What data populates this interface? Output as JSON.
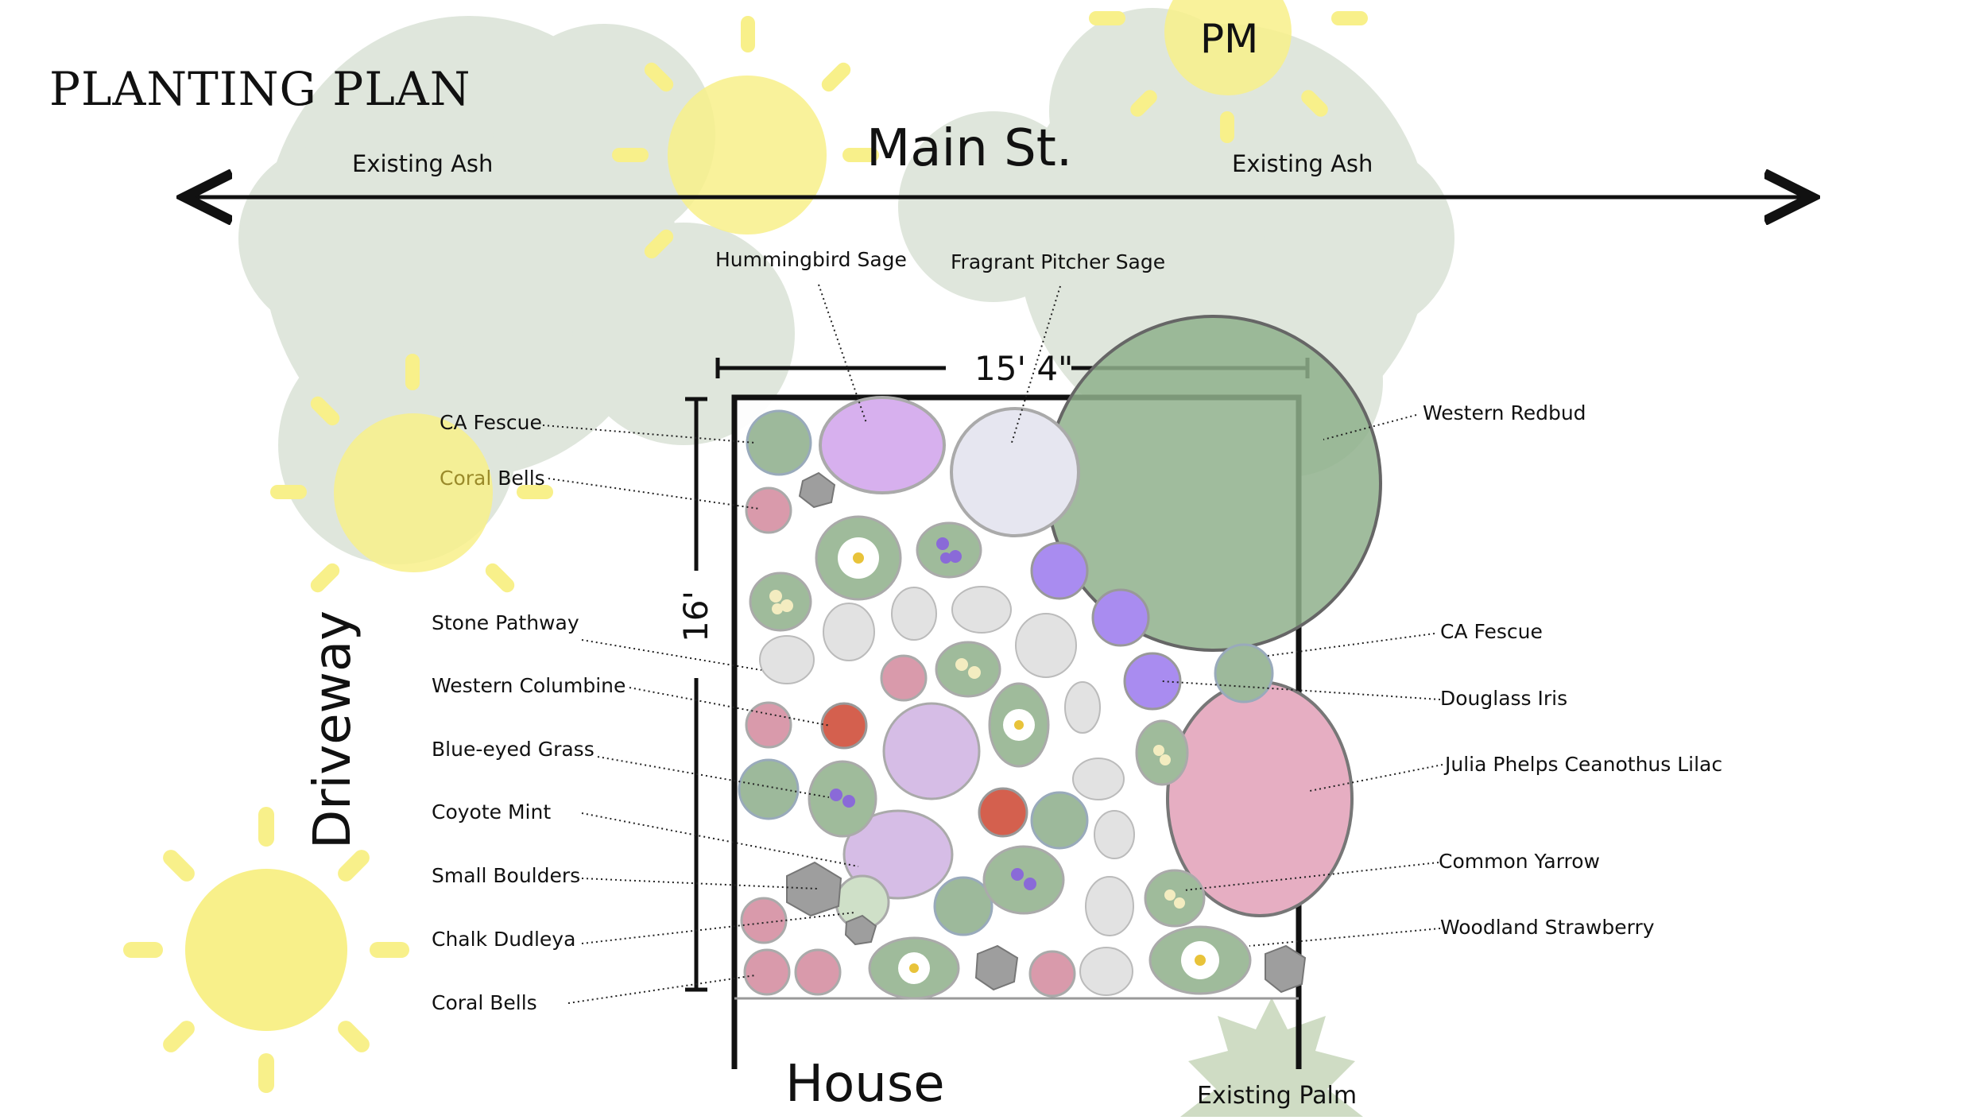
{
  "title": "PLANTING PLAN",
  "streets": {
    "main": "Main St.",
    "driveway": "Driveway",
    "house": "House"
  },
  "sun_label": "PM",
  "existing": {
    "ash_left": "Existing Ash",
    "ash_right": "Existing Ash",
    "palm": "Existing Palm"
  },
  "dimensions": {
    "width": "15' 4\"",
    "depth": "16'"
  },
  "labels": {
    "hummingbird_sage": "Hummingbird Sage",
    "fragrant_pitcher_sage": "Fragrant Pitcher Sage",
    "ca_fescue_left": "CA Fescue",
    "coral_bells_top_prefix": "Coral",
    "coral_bells_top_suffix": " Bells",
    "stone_pathway": "Stone Pathway",
    "western_columbine": "Western Columbine",
    "blue_eyed_grass": "Blue-eyed Grass",
    "coyote_mint": "Coyote Mint",
    "small_boulders": "Small Boulders",
    "chalk_dudleya": "Chalk Dudleya",
    "coral_bells_bottom": "Coral Bells",
    "western_redbud": "Western Redbud",
    "ca_fescue_right": "CA Fescue",
    "douglass_iris": "Douglass Iris",
    "julia_phelps": "Julia Phelps Ceanothus Lilac",
    "common_yarrow": "Common Yarrow",
    "woodland_strawberry": "Woodland Strawberry"
  },
  "colors": {
    "sun": "#f8f08a",
    "tree_canopy": "#dfe6dc",
    "redbud": "#8fb08c",
    "fescue": "#9db99b",
    "coral_bells": "#d99aab",
    "columbine": "#d4604e",
    "iris": "#a98cf0",
    "coyote_mint": "#d6bde6",
    "hummingbird_sage": "#d7b0ee",
    "pitcher_sage": "#e6e6f0",
    "lilac": "#e6aec2",
    "palm": "#cfdcc4",
    "leaf_plant": "#9fbb9b",
    "stone": "#d9d9d9",
    "boulder": "#9e9e9e"
  }
}
